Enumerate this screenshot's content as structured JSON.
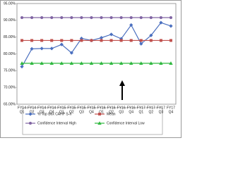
{
  "chart_data": {
    "type": "line",
    "categories": [
      [
        "FY14",
        "Q1"
      ],
      [
        "FY14",
        "Q2"
      ],
      [
        "FY14",
        "Q3"
      ],
      [
        "FY14",
        "Q4"
      ],
      [
        "FY15",
        "Q1"
      ],
      [
        "FY15",
        "Q2"
      ],
      [
        "FY15",
        "Q3"
      ],
      [
        "FY15",
        "Q4"
      ],
      [
        "FY16",
        "Q1"
      ],
      [
        "FY16",
        "Q2"
      ],
      [
        "FY16",
        "Q3"
      ],
      [
        "FY16",
        "Q4"
      ],
      [
        "FY17",
        "Q1"
      ],
      [
        "FY17",
        "Q2"
      ],
      [
        "FY17",
        "Q3"
      ],
      [
        "FY17",
        "Q4"
      ]
    ],
    "series": [
      {
        "name": "% Top Box CAHP S-II",
        "color": "#4a6fbf",
        "marker": "diamond",
        "values": [
          76.2,
          81.5,
          81.6,
          81.6,
          82.8,
          80.3,
          84.6,
          84.0,
          84.8,
          85.8,
          84.5,
          88.6,
          83.0,
          85.5,
          89.3,
          88.3
        ]
      },
      {
        "name": "Mean",
        "color": "#c0504d",
        "marker": "square",
        "values": [
          84.0,
          84.0,
          84.0,
          84.0,
          84.0,
          84.0,
          84.0,
          84.0,
          84.0,
          84.0,
          84.0,
          84.0,
          84.0,
          84.0,
          84.0,
          84.0
        ]
      },
      {
        "name": "Confidence Interval High",
        "color": "#8064a2",
        "marker": "circle",
        "values": [
          90.8,
          90.8,
          90.8,
          90.8,
          90.8,
          90.8,
          90.8,
          90.8,
          90.8,
          90.8,
          90.8,
          90.8,
          90.8,
          90.8,
          90.8,
          90.8
        ]
      },
      {
        "name": "Confidence Interval Low",
        "color": "#2db83d",
        "marker": "triangle",
        "values": [
          77.2,
          77.2,
          77.2,
          77.2,
          77.2,
          77.2,
          77.2,
          77.2,
          77.2,
          77.2,
          77.2,
          77.2,
          77.2,
          77.2,
          77.2,
          77.2
        ]
      }
    ],
    "ylim": [
      65,
      95
    ],
    "yticks": [
      {
        "value": 65,
        "label": "65.00%"
      },
      {
        "value": 70,
        "label": "70.00%"
      },
      {
        "value": 75,
        "label": "75.00%"
      },
      {
        "value": 80,
        "label": "80.00%"
      },
      {
        "value": 85,
        "label": "85.00%"
      },
      {
        "value": 90,
        "label": "90.00%"
      },
      {
        "value": 95,
        "label": "95.00%"
      }
    ],
    "grid": false,
    "legend": "bottom"
  }
}
